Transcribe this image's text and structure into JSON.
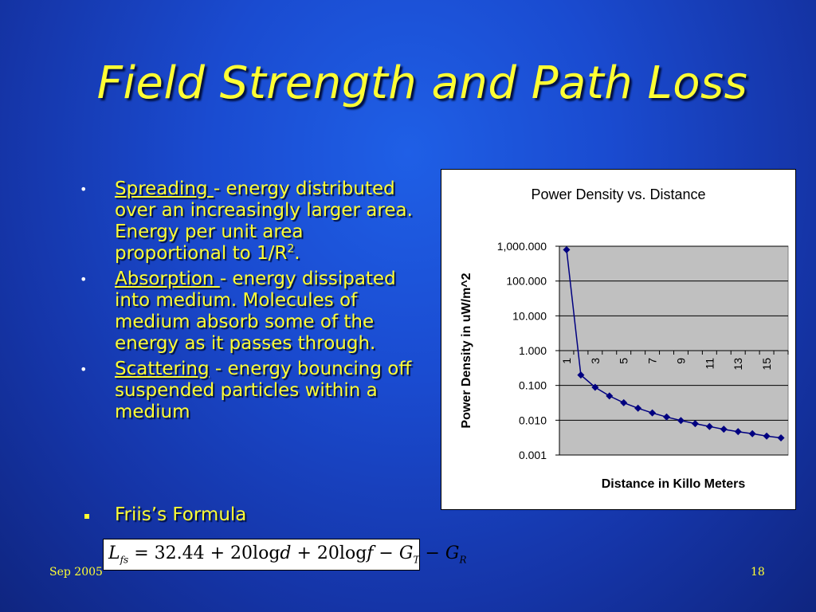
{
  "slide": {
    "title": "Field Strength and Path Loss",
    "footer_date": "Sep 2005",
    "page_number": "18"
  },
  "bullets": [
    {
      "term": "Spreading ",
      "text": "- energy distributed over an increasingly larger area. Energy per unit area proportional to 1/R",
      "sup": "2",
      "tail": "."
    },
    {
      "term": "Absorption ",
      "text": "- energy dissipated into medium. Molecules of medium absorb some of the energy as it passes through.",
      "sup": "",
      "tail": ""
    },
    {
      "term": "Scattering",
      "text": " - energy bouncing off suspended particles within a medium",
      "sup": "",
      "tail": ""
    }
  ],
  "friis": {
    "label": "Friis’s Formula",
    "formula": "L_fs = 32.44 + 20log d + 20log f − G_T − G_R"
  },
  "chart_data": {
    "type": "line",
    "title": "Power Density vs. Distance",
    "xlabel": "Distance in Killo Meters",
    "ylabel": "Power Density in uW/m^2",
    "y_scale": "log",
    "ylim": [
      0.001,
      1000
    ],
    "y_ticks": [
      "1,000.000",
      "100.000",
      "10.000",
      "1.000",
      "0.100",
      "0.010",
      "0.001"
    ],
    "x_tick_labels": [
      "1",
      "3",
      "5",
      "7",
      "9",
      "11",
      "13",
      "15"
    ],
    "x": [
      1,
      2,
      3,
      4,
      5,
      6,
      7,
      8,
      9,
      10,
      11,
      12,
      13,
      14,
      15,
      16
    ],
    "series": [
      {
        "values": [
          795.8,
          0.199,
          0.0884,
          0.0497,
          0.0318,
          0.0221,
          0.0162,
          0.0124,
          0.0098,
          0.008,
          0.0066,
          0.0055,
          0.0047,
          0.0041,
          0.0035,
          0.0031
        ],
        "color": "#000080"
      }
    ],
    "plot_bg": "#c0c0c0",
    "grid": true,
    "legend": "none"
  }
}
